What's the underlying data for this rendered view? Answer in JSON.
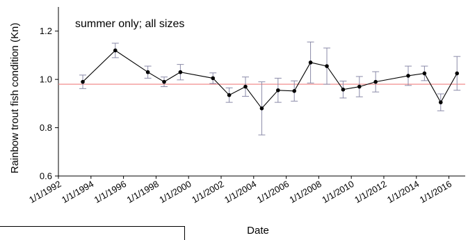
{
  "chart_data": {
    "type": "line",
    "annotation": "summer only; all sizes",
    "xlabel": "Date",
    "ylabel": "Rainbow trout fish condition (Kn)",
    "ylim": [
      0.6,
      1.3
    ],
    "yticks": [
      "0.6",
      "0.8",
      "1.0",
      "1.2"
    ],
    "xticks": [
      "1/1/1992",
      "1/1/1994",
      "1/1/1996",
      "1/1/1998",
      "1/1/2000",
      "1/1/2002",
      "1/1/2004",
      "1/1/2006",
      "1/1/2008",
      "1/1/2010",
      "1/1/2012",
      "1/1/2014",
      "1/1/2016"
    ],
    "xlim": [
      "1992-01-01",
      "2017-01-01"
    ],
    "reference_line": {
      "y": 0.98,
      "color": "#f08080"
    },
    "colors": {
      "series": "#000000",
      "error_bars": "#8a8aa8",
      "reference": "#f08080"
    },
    "series": [
      {
        "points": [
          {
            "x": "1993-07-01",
            "y": 0.99,
            "err": 0.028
          },
          {
            "x": "1995-07-01",
            "y": 1.12,
            "err": 0.03
          },
          {
            "x": "1997-07-01",
            "y": 1.03,
            "err": 0.025
          },
          {
            "x": "1998-07-01",
            "y": 0.99,
            "err": 0.02
          },
          {
            "x": "1999-07-01",
            "y": 1.03,
            "err": 0.032
          },
          {
            "x": "2001-07-01",
            "y": 1.005,
            "err": 0.022
          },
          {
            "x": "2002-07-01",
            "y": 0.935,
            "err": 0.03
          },
          {
            "x": "2003-07-01",
            "y": 0.97,
            "err": 0.04
          },
          {
            "x": "2004-07-01",
            "y": 0.88,
            "err": 0.11
          },
          {
            "x": "2005-07-01",
            "y": 0.955,
            "err": 0.05
          },
          {
            "x": "2006-07-01",
            "y": 0.952,
            "err": 0.042
          },
          {
            "x": "2007-07-01",
            "y": 1.07,
            "err": 0.085
          },
          {
            "x": "2008-07-01",
            "y": 1.055,
            "err": 0.075
          },
          {
            "x": "2009-07-01",
            "y": 0.958,
            "err": 0.035
          },
          {
            "x": "2010-07-01",
            "y": 0.97,
            "err": 0.042
          },
          {
            "x": "2011-07-01",
            "y": 0.99,
            "err": 0.042
          },
          {
            "x": "2013-07-01",
            "y": 1.015,
            "err": 0.04
          },
          {
            "x": "2014-07-01",
            "y": 1.025,
            "err": 0.03
          },
          {
            "x": "2015-07-01",
            "y": 0.905,
            "err": 0.035
          },
          {
            "x": "2016-07-01",
            "y": 1.025,
            "err": 0.07
          }
        ]
      }
    ]
  }
}
